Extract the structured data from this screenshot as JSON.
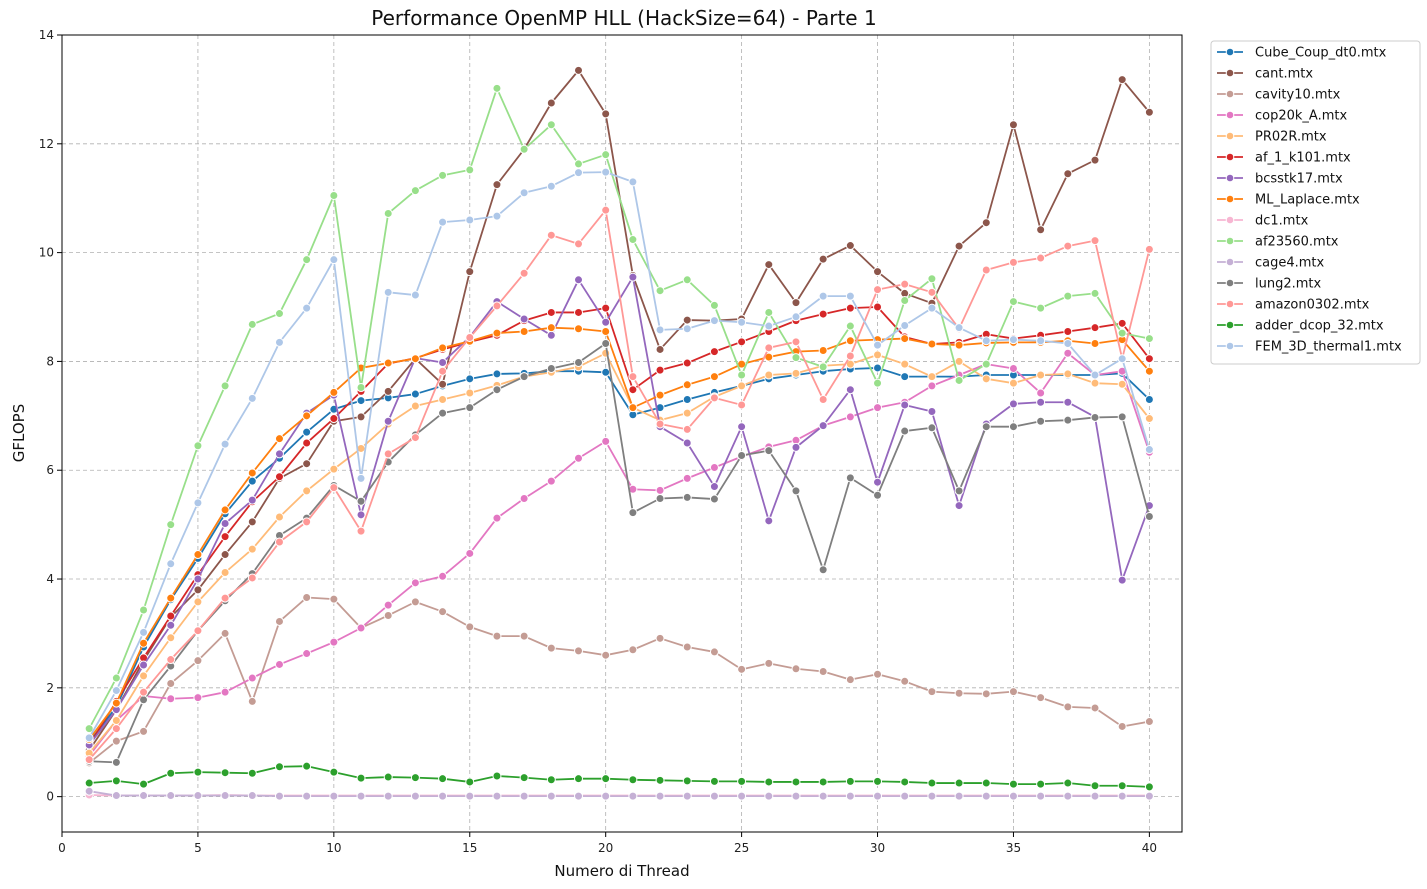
{
  "chart_data": {
    "type": "line",
    "title": "Performance OpenMP HLL (HackSize=64) - Parte 1",
    "xlabel": "Numero di Thread",
    "ylabel": "GFLOPS",
    "xlim": [
      0,
      41.2
    ],
    "ylim": [
      -0.65,
      14
    ],
    "xticks": [
      0,
      5,
      10,
      15,
      20,
      25,
      30,
      35,
      40
    ],
    "yticks": [
      0,
      2,
      4,
      6,
      8,
      10,
      12,
      14
    ],
    "grid": true,
    "legend_position": "outside-right",
    "x": [
      1,
      2,
      3,
      4,
      5,
      6,
      7,
      8,
      9,
      10,
      11,
      12,
      13,
      14,
      15,
      16,
      17,
      18,
      19,
      20,
      21,
      22,
      23,
      24,
      25,
      26,
      27,
      28,
      29,
      30,
      31,
      32,
      33,
      34,
      35,
      36,
      37,
      38,
      39,
      40
    ],
    "series": [
      {
        "name": "Cube_Coup_dt0.mtx",
        "color": "#1f77b4",
        "values": [
          1.0,
          1.65,
          2.75,
          3.62,
          4.38,
          5.2,
          5.8,
          6.22,
          6.7,
          7.12,
          7.28,
          7.33,
          7.4,
          7.55,
          7.68,
          7.77,
          7.78,
          7.82,
          7.82,
          7.8,
          7.02,
          7.15,
          7.3,
          7.43,
          7.55,
          7.68,
          7.75,
          7.82,
          7.86,
          7.88,
          7.72,
          7.72,
          7.72,
          7.75,
          7.75,
          7.75,
          7.75,
          7.75,
          7.78,
          7.3
        ]
      },
      {
        "name": "cant.mtx",
        "color": "#8c564b",
        "values": [
          0.85,
          1.6,
          2.5,
          3.3,
          3.8,
          4.45,
          5.05,
          5.85,
          6.12,
          6.9,
          6.98,
          7.45,
          8.05,
          7.58,
          9.65,
          11.25,
          11.9,
          12.75,
          13.35,
          12.55,
          9.58,
          8.22,
          8.76,
          8.75,
          8.78,
          9.78,
          9.08,
          9.88,
          10.13,
          9.65,
          9.25,
          9.07,
          10.12,
          10.55,
          12.35,
          10.42,
          11.45,
          11.7,
          13.18,
          12.58
        ]
      },
      {
        "name": "cavity10.mtx",
        "color": "#c49c94",
        "values": [
          0.62,
          1.02,
          1.2,
          2.08,
          2.5,
          3.0,
          1.75,
          3.22,
          3.66,
          3.63,
          3.1,
          3.33,
          3.58,
          3.4,
          3.12,
          2.95,
          2.95,
          2.73,
          2.68,
          2.6,
          2.7,
          2.91,
          2.75,
          2.66,
          2.34,
          2.45,
          2.35,
          2.3,
          2.15,
          2.25,
          2.12,
          1.93,
          1.9,
          1.89,
          1.93,
          1.82,
          1.65,
          1.63,
          1.29,
          1.38
        ]
      },
      {
        "name": "cop20k_A.mtx",
        "color": "#e377c2",
        "values": [
          0.75,
          1.4,
          1.85,
          1.8,
          1.82,
          1.92,
          2.18,
          2.43,
          2.63,
          2.84,
          3.1,
          3.52,
          3.93,
          4.05,
          4.47,
          5.12,
          5.48,
          5.8,
          6.22,
          6.53,
          5.65,
          5.63,
          5.85,
          6.05,
          6.25,
          6.43,
          6.55,
          6.82,
          6.98,
          7.15,
          7.25,
          7.55,
          7.75,
          7.95,
          7.87,
          7.42,
          8.15,
          7.75,
          7.82,
          6.33
        ]
      },
      {
        "name": "PR02R.mtx",
        "color": "#ffbb78",
        "values": [
          0.8,
          1.4,
          2.22,
          2.92,
          3.58,
          4.12,
          4.55,
          5.14,
          5.62,
          6.02,
          6.4,
          6.85,
          7.18,
          7.3,
          7.42,
          7.56,
          7.72,
          7.8,
          7.9,
          8.15,
          7.15,
          6.92,
          7.05,
          7.35,
          7.55,
          7.75,
          7.78,
          7.92,
          7.95,
          8.12,
          7.95,
          7.72,
          8.0,
          7.68,
          7.6,
          7.75,
          7.77,
          7.6,
          7.58,
          6.95
        ]
      },
      {
        "name": "af_1_k101.mtx",
        "color": "#d62728",
        "values": [
          0.95,
          1.75,
          2.55,
          3.32,
          4.08,
          4.78,
          5.42,
          5.88,
          6.5,
          6.95,
          7.45,
          7.96,
          8.06,
          8.22,
          8.36,
          8.48,
          8.75,
          8.9,
          8.9,
          8.98,
          7.48,
          7.84,
          7.97,
          8.18,
          8.36,
          8.55,
          8.75,
          8.87,
          8.98,
          9.0,
          8.45,
          8.32,
          8.35,
          8.5,
          8.42,
          8.48,
          8.55,
          8.62,
          8.7,
          8.05
        ]
      },
      {
        "name": "bcsstk17.mtx",
        "color": "#9467bd",
        "values": [
          0.95,
          1.6,
          2.42,
          3.15,
          4.0,
          5.02,
          5.45,
          6.3,
          7.05,
          7.38,
          5.18,
          6.9,
          8.06,
          7.98,
          8.45,
          9.1,
          8.78,
          8.48,
          9.5,
          8.72,
          9.55,
          6.8,
          6.5,
          5.7,
          6.8,
          5.07,
          6.42,
          6.82,
          7.48,
          5.78,
          7.2,
          7.08,
          5.35,
          6.85,
          7.22,
          7.25,
          7.25,
          6.98,
          3.98,
          5.35
        ]
      },
      {
        "name": "ML_Laplace.mtx",
        "color": "#ff7f0e",
        "values": [
          1.05,
          1.72,
          2.82,
          3.65,
          4.45,
          5.27,
          5.95,
          6.58,
          7.0,
          7.43,
          7.88,
          7.97,
          8.05,
          8.25,
          8.37,
          8.52,
          8.55,
          8.62,
          8.6,
          8.55,
          7.15,
          7.38,
          7.57,
          7.72,
          7.95,
          8.08,
          8.18,
          8.2,
          8.38,
          8.4,
          8.42,
          8.32,
          8.3,
          8.34,
          8.35,
          8.35,
          8.38,
          8.33,
          8.4,
          7.82
        ]
      },
      {
        "name": "dc1.mtx",
        "color": "#f7b6d2",
        "values": [
          0.03,
          0.02,
          0.02,
          0.02,
          0.02,
          0.03,
          0.02,
          0.02,
          0.02,
          0.02,
          0.02,
          0.02,
          0.02,
          0.02,
          0.02,
          0.02,
          0.02,
          0.02,
          0.02,
          0.02,
          0.02,
          0.02,
          0.02,
          0.02,
          0.02,
          0.02,
          0.02,
          0.02,
          0.02,
          0.02,
          0.02,
          0.02,
          0.02,
          0.02,
          0.02,
          0.02,
          0.02,
          0.02,
          0.02,
          0.02
        ]
      },
      {
        "name": "af23560.mtx",
        "color": "#98df8a",
        "values": [
          1.25,
          2.18,
          3.43,
          5.0,
          6.45,
          7.55,
          8.68,
          8.88,
          9.87,
          11.05,
          7.52,
          10.72,
          11.14,
          11.42,
          11.52,
          13.02,
          11.9,
          12.35,
          11.63,
          11.8,
          10.24,
          9.3,
          9.5,
          9.03,
          7.75,
          8.9,
          8.07,
          7.9,
          8.65,
          7.6,
          9.12,
          9.52,
          7.65,
          7.95,
          9.1,
          8.98,
          9.2,
          9.25,
          8.52,
          8.42
        ]
      },
      {
        "name": "cage4.mtx",
        "color": "#c5b0d5",
        "values": [
          0.1,
          0.02,
          0.02,
          0.02,
          0.02,
          0.02,
          0.02,
          0.01,
          0.01,
          0.01,
          0.01,
          0.01,
          0.01,
          0.01,
          0.01,
          0.01,
          0.01,
          0.01,
          0.01,
          0.01,
          0.01,
          0.01,
          0.01,
          0.01,
          0.01,
          0.01,
          0.01,
          0.01,
          0.01,
          0.01,
          0.01,
          0.01,
          0.01,
          0.01,
          0.01,
          0.01,
          0.01,
          0.01,
          0.01,
          0.01
        ]
      },
      {
        "name": "lung2.mtx",
        "color": "#7f7f7f",
        "values": [
          0.65,
          0.63,
          1.78,
          2.4,
          3.05,
          3.6,
          4.1,
          4.8,
          5.12,
          5.72,
          5.43,
          6.15,
          6.65,
          7.05,
          7.15,
          7.48,
          7.72,
          7.87,
          7.98,
          8.33,
          5.22,
          5.48,
          5.5,
          5.47,
          6.27,
          6.36,
          5.62,
          4.17,
          5.86,
          5.54,
          6.72,
          6.78,
          5.62,
          6.8,
          6.8,
          6.9,
          6.92,
          6.97,
          6.98,
          5.15
        ]
      },
      {
        "name": "amazon0302.mtx",
        "color": "#ff9896",
        "values": [
          0.68,
          1.25,
          1.92,
          2.52,
          3.05,
          3.65,
          4.02,
          4.68,
          5.05,
          5.68,
          4.88,
          6.3,
          6.6,
          7.82,
          8.44,
          9.02,
          9.62,
          10.32,
          10.16,
          10.78,
          7.72,
          6.85,
          6.75,
          7.33,
          7.2,
          8.25,
          8.36,
          7.3,
          8.1,
          9.32,
          9.42,
          9.27,
          8.6,
          9.68,
          9.82,
          9.9,
          10.12,
          10.22,
          8.05,
          10.06
        ]
      },
      {
        "name": "adder_dcop_32.mtx",
        "color": "#2ca02c",
        "values": [
          0.25,
          0.29,
          0.23,
          0.43,
          0.45,
          0.44,
          0.43,
          0.55,
          0.56,
          0.45,
          0.34,
          0.36,
          0.35,
          0.33,
          0.27,
          0.38,
          0.35,
          0.31,
          0.33,
          0.33,
          0.31,
          0.3,
          0.29,
          0.28,
          0.28,
          0.27,
          0.27,
          0.27,
          0.28,
          0.28,
          0.27,
          0.25,
          0.25,
          0.25,
          0.23,
          0.23,
          0.25,
          0.2,
          0.2,
          0.18
        ]
      },
      {
        "name": "FEM_3D_thermal1.mtx",
        "color": "#aec7e8",
        "values": [
          1.08,
          1.95,
          3.02,
          4.28,
          5.4,
          6.48,
          7.32,
          8.35,
          8.98,
          9.87,
          5.85,
          9.27,
          9.22,
          10.56,
          10.6,
          10.67,
          11.1,
          11.22,
          11.47,
          11.48,
          11.3,
          8.58,
          8.6,
          8.75,
          8.72,
          8.65,
          8.82,
          9.2,
          9.2,
          8.3,
          8.66,
          8.98,
          8.62,
          8.38,
          8.4,
          8.38,
          8.33,
          7.75,
          8.05,
          6.38
        ]
      }
    ]
  }
}
